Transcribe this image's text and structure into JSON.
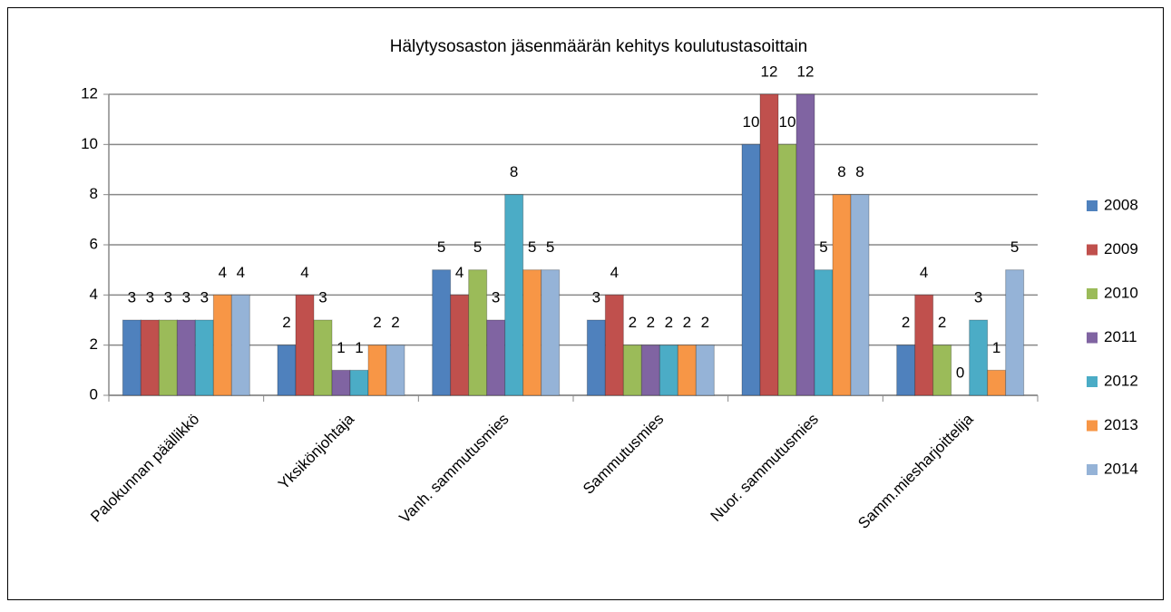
{
  "chart_data": {
    "type": "bar",
    "title": "Hälytysosaston jäsenmäärän kehitys koulutustasoittain",
    "categories": [
      "Palokunnan päällikkö",
      "Yksikönjohtaja",
      "Vanh. sammutusmies",
      "Sammutusmies",
      "Nuor. sammutusmies",
      "Samm.miesharjoittelija"
    ],
    "series": [
      {
        "name": "2008",
        "color": "#4f81bd",
        "values": [
          3,
          2,
          5,
          3,
          10,
          2
        ]
      },
      {
        "name": "2009",
        "color": "#c0504d",
        "values": [
          3,
          4,
          4,
          4,
          12,
          4
        ]
      },
      {
        "name": "2010",
        "color": "#9bbb59",
        "values": [
          3,
          3,
          5,
          2,
          10,
          2
        ]
      },
      {
        "name": "2011",
        "color": "#8064a2",
        "values": [
          3,
          1,
          3,
          2,
          12,
          0
        ]
      },
      {
        "name": "2012",
        "color": "#4bacc6",
        "values": [
          3,
          1,
          8,
          2,
          5,
          3
        ]
      },
      {
        "name": "2013",
        "color": "#f79646",
        "values": [
          4,
          2,
          5,
          2,
          8,
          1
        ]
      },
      {
        "name": "2014",
        "color": "#95b3d7",
        "values": [
          4,
          2,
          5,
          2,
          8,
          5
        ]
      }
    ],
    "ylim": [
      0,
      12
    ],
    "yticks": [
      0,
      2,
      4,
      6,
      8,
      10,
      12
    ],
    "grid": true,
    "legend": "right"
  }
}
